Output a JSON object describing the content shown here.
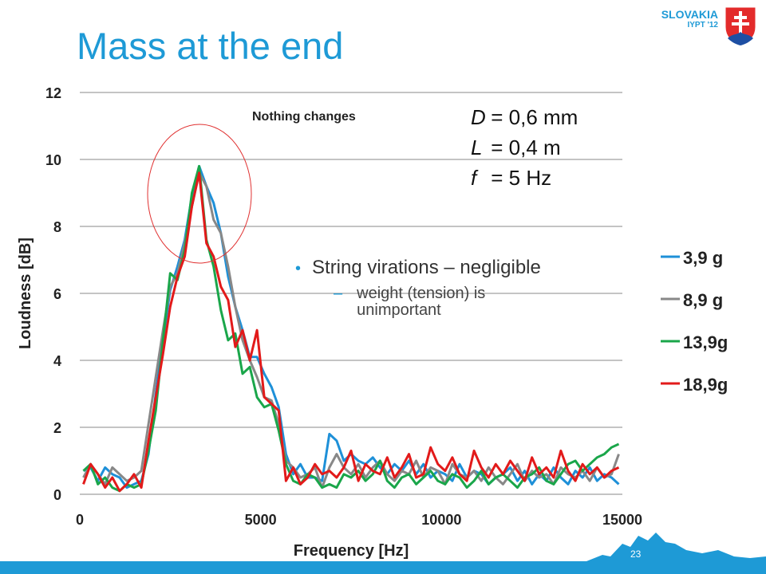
{
  "slide": {
    "title": "Mass at the end",
    "country": "SLOVAKIA",
    "event": "IYPT '12",
    "page_number": "23"
  },
  "params": [
    {
      "var": "D",
      "rest": " = 0,6 mm"
    },
    {
      "var": "L",
      "rest": "  = 0,4 m"
    },
    {
      "var": "f",
      "rest": "  = 5 Hz"
    }
  ],
  "bullets": {
    "main": "String virations – negligible",
    "sub_dash": "–",
    "sub": "weight (tension) is unimportant"
  },
  "colors": {
    "accent": "#1e9ad6",
    "highlight_circle": "#e03030"
  },
  "chart_data": {
    "type": "line",
    "xlabel": "Frequency [Hz]",
    "ylabel": "Loudness [dB]",
    "xlim": [
      0,
      15000
    ],
    "ylim": [
      0,
      12
    ],
    "xticks": [
      0,
      5000,
      10000,
      15000
    ],
    "yticks": [
      0,
      2,
      4,
      6,
      8,
      10,
      12
    ],
    "grid": "horizontal",
    "legend_position": "right",
    "annotation": "Nothing changes",
    "highlight": {
      "shape": "ellipse",
      "center_x": 3500,
      "center_y": 8.8,
      "note": "red circle around peak"
    },
    "x": [
      100,
      300,
      500,
      700,
      900,
      1100,
      1300,
      1500,
      1700,
      1900,
      2100,
      2300,
      2500,
      2700,
      2900,
      3100,
      3300,
      3500,
      3700,
      3900,
      4100,
      4300,
      4500,
      4700,
      4900,
      5100,
      5300,
      5500,
      5700,
      5900,
      6100,
      6300,
      6500,
      6700,
      6900,
      7100,
      7300,
      7500,
      7700,
      7900,
      8100,
      8300,
      8500,
      8700,
      8900,
      9100,
      9300,
      9500,
      9700,
      9900,
      10100,
      10300,
      10500,
      10700,
      10900,
      11100,
      11300,
      11500,
      11700,
      11900,
      12100,
      12300,
      12500,
      12700,
      12900,
      13100,
      13300,
      13500,
      13700,
      13900,
      14100,
      14300,
      14500,
      14700,
      14900
    ],
    "series": [
      {
        "name": "3,9 g",
        "color": "#1e90d8",
        "values": [
          0.7,
          0.8,
          0.4,
          0.8,
          0.6,
          0.5,
          0.2,
          0.3,
          0.4,
          1.2,
          3.0,
          4.6,
          6.1,
          6.8,
          7.6,
          8.9,
          9.8,
          9.2,
          8.7,
          7.8,
          6.5,
          5.6,
          4.9,
          4.1,
          4.1,
          3.6,
          3.2,
          2.6,
          1.2,
          0.6,
          0.9,
          0.5,
          0.5,
          0.4,
          1.8,
          1.6,
          1.0,
          1.2,
          1.0,
          0.9,
          1.1,
          0.8,
          0.6,
          0.9,
          0.7,
          1.0,
          0.6,
          0.9,
          0.5,
          0.7,
          0.6,
          0.4,
          0.9,
          0.5,
          0.7,
          0.6,
          0.3,
          0.5,
          0.6,
          0.8,
          0.4,
          0.7,
          0.3,
          0.6,
          0.4,
          0.8,
          0.5,
          0.3,
          0.7,
          0.5,
          0.8,
          0.4,
          0.6,
          0.5,
          0.3
        ]
      },
      {
        "name": "8,9 g",
        "color": "#888888",
        "values": [
          0.5,
          0.9,
          0.6,
          0.3,
          0.8,
          0.6,
          0.4,
          0.5,
          0.7,
          2.1,
          3.5,
          4.9,
          6.2,
          6.6,
          7.5,
          8.6,
          9.6,
          9.2,
          8.2,
          7.8,
          6.8,
          5.6,
          4.6,
          4.0,
          3.5,
          2.9,
          2.8,
          2.1,
          1.0,
          0.8,
          0.5,
          0.6,
          0.8,
          0.2,
          0.8,
          1.2,
          0.8,
          0.6,
          0.9,
          0.5,
          0.8,
          1.0,
          0.6,
          0.4,
          0.7,
          0.6,
          1.0,
          0.5,
          0.8,
          0.7,
          0.3,
          0.9,
          0.6,
          0.5,
          0.7,
          0.4,
          0.8,
          0.5,
          0.3,
          0.6,
          0.9,
          0.4,
          0.7,
          0.5,
          0.6,
          0.3,
          0.8,
          0.6,
          0.5,
          0.7,
          0.4,
          0.8,
          0.5,
          0.6,
          1.2
        ]
      },
      {
        "name": "13,9g",
        "color": "#1aa64a",
        "values": [
          0.7,
          0.9,
          0.3,
          0.5,
          0.2,
          0.1,
          0.3,
          0.2,
          0.3,
          1.3,
          2.5,
          4.6,
          6.6,
          6.4,
          7.3,
          9.0,
          9.8,
          7.6,
          6.8,
          5.5,
          4.6,
          4.8,
          3.6,
          3.8,
          2.9,
          2.6,
          2.7,
          1.9,
          0.9,
          0.4,
          0.3,
          0.6,
          0.5,
          0.2,
          0.3,
          0.2,
          0.6,
          0.5,
          0.7,
          0.4,
          0.6,
          1.0,
          0.4,
          0.2,
          0.5,
          0.6,
          0.3,
          0.5,
          0.7,
          0.4,
          0.3,
          0.6,
          0.5,
          0.2,
          0.4,
          0.7,
          0.3,
          0.5,
          0.6,
          0.4,
          0.2,
          0.5,
          0.6,
          0.8,
          0.4,
          0.3,
          0.6,
          0.9,
          1.0,
          0.7,
          0.9,
          1.1,
          1.2,
          1.4,
          1.5
        ]
      },
      {
        "name": "18,9g",
        "color": "#e21a1a",
        "values": [
          0.3,
          0.9,
          0.6,
          0.2,
          0.5,
          0.1,
          0.3,
          0.6,
          0.2,
          1.6,
          2.9,
          4.2,
          5.6,
          6.5,
          7.1,
          8.6,
          9.6,
          7.5,
          7.1,
          6.2,
          5.8,
          4.4,
          4.9,
          4.0,
          4.9,
          2.9,
          2.7,
          2.5,
          0.4,
          0.8,
          0.3,
          0.5,
          0.9,
          0.6,
          0.7,
          0.5,
          0.8,
          1.3,
          0.4,
          0.9,
          0.7,
          0.6,
          1.1,
          0.5,
          0.8,
          1.2,
          0.5,
          0.6,
          1.4,
          0.9,
          0.7,
          1.1,
          0.6,
          0.4,
          1.3,
          0.8,
          0.5,
          0.9,
          0.6,
          1.0,
          0.7,
          0.4,
          1.1,
          0.6,
          0.8,
          0.5,
          1.3,
          0.7,
          0.4,
          0.9,
          0.6,
          0.8,
          0.5,
          0.7,
          0.8
        ]
      }
    ]
  }
}
